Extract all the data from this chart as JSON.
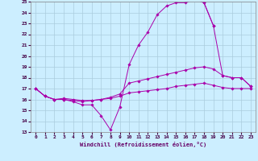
{
  "xlabel": "Windchill (Refroidissement éolien,°C)",
  "xlim": [
    -0.5,
    23.5
  ],
  "ylim": [
    13,
    25
  ],
  "xticks": [
    0,
    1,
    2,
    3,
    4,
    5,
    6,
    7,
    8,
    9,
    10,
    11,
    12,
    13,
    14,
    15,
    16,
    17,
    18,
    19,
    20,
    21,
    22,
    23
  ],
  "yticks": [
    13,
    14,
    15,
    16,
    17,
    18,
    19,
    20,
    21,
    22,
    23,
    24,
    25
  ],
  "bg_color": "#cceeff",
  "grid_color": "#aaccdd",
  "line_color": "#aa00aa",
  "curves": [
    {
      "x": [
        0,
        1,
        2,
        3,
        4,
        5,
        6,
        7,
        8,
        9,
        10,
        11,
        12,
        13,
        14,
        15,
        16,
        17,
        18,
        19,
        20,
        21,
        22,
        23
      ],
      "y": [
        17,
        16.3,
        16,
        16,
        15.8,
        15.5,
        15.5,
        14.5,
        13.2,
        15.3,
        19.2,
        21,
        22.2,
        23.8,
        24.6,
        24.9,
        24.9,
        25.2,
        24.9,
        22.8,
        null,
        null,
        null,
        null
      ]
    },
    {
      "x": [
        0,
        1,
        2,
        3,
        4,
        5,
        6,
        7,
        8,
        9,
        10,
        11,
        12,
        13,
        14,
        15,
        16,
        17,
        18,
        19,
        20,
        21,
        22,
        23
      ],
      "y": [
        17,
        16.3,
        16,
        16.1,
        16.0,
        15.9,
        15.9,
        16.0,
        16.2,
        16.5,
        17.5,
        17.7,
        17.9,
        18.1,
        18.3,
        18.5,
        18.7,
        18.9,
        19.0,
        18.8,
        18.2,
        18.0,
        18.0,
        17.2
      ]
    },
    {
      "x": [
        0,
        1,
        2,
        3,
        4,
        5,
        6,
        7,
        8,
        9,
        10,
        11,
        12,
        13,
        14,
        15,
        16,
        17,
        18,
        19,
        20,
        21,
        22,
        23
      ],
      "y": [
        17,
        16.3,
        16.0,
        16.0,
        15.9,
        15.8,
        15.9,
        16.0,
        16.1,
        16.3,
        16.6,
        16.7,
        16.8,
        16.9,
        17.0,
        17.2,
        17.3,
        17.4,
        17.5,
        17.3,
        17.1,
        17.0,
        17.0,
        17.0
      ]
    },
    {
      "x": [
        18,
        19,
        20,
        21,
        22,
        23
      ],
      "y": [
        24.9,
        22.8,
        18.2,
        18.0,
        18.0,
        17.2
      ]
    }
  ]
}
